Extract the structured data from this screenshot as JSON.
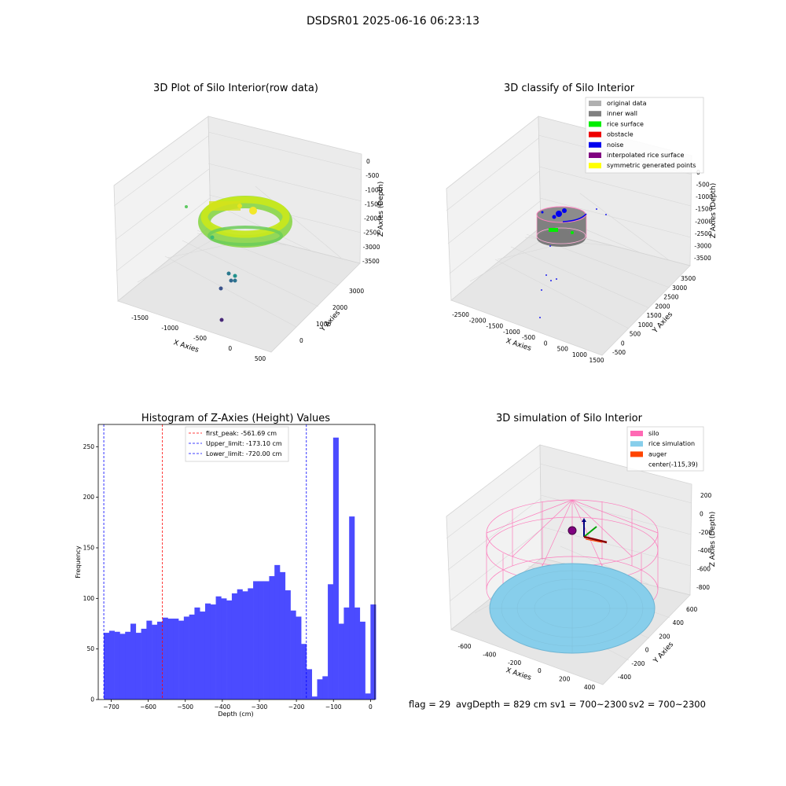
{
  "figure": {
    "suptitle": "DSDSR01 2025-06-16 06:23:13",
    "footer": {
      "flag": "flag = 29",
      "avg_depth": "avgDepth = 829 cm",
      "sv1": "sv1 = 700~2300",
      "sv2": "sv2 = 700~2300"
    }
  },
  "panels": {
    "raw": {
      "title": "3D Plot of Silo Interior(row data)",
      "xlabel": "X Axies",
      "ylabel": "Y Axies",
      "zlabel": "Z Axies (Depth)",
      "xticks": [
        "-1500",
        "-1000",
        "-500",
        "0",
        "500"
      ],
      "yticks": [
        "0",
        "1000",
        "2000",
        "3000"
      ],
      "zticks": [
        "0",
        "-500",
        "-1000",
        "-1500",
        "-2000",
        "-2500",
        "-3000",
        "-3500"
      ]
    },
    "classify": {
      "title": "3D classify of Silo Interior",
      "xlabel": "X Axies",
      "ylabel": "Y Axies",
      "zlabel": "Z Axies (Depth)",
      "xticks": [
        "-2500",
        "-2000",
        "-1500",
        "-1000",
        "-500",
        "0",
        "500",
        "1000",
        "1500"
      ],
      "yticks": [
        "-500",
        "0",
        "500",
        "1000",
        "1500",
        "2000",
        "2500",
        "3000",
        "3500"
      ],
      "zticks": [
        "0",
        "-500",
        "-1000",
        "-1500",
        "-2000",
        "-2500",
        "-3000",
        "-3500"
      ],
      "legend": [
        {
          "label": "original data",
          "color": "#b0b0b0"
        },
        {
          "label": "inner wall",
          "color": "#808080"
        },
        {
          "label": "rice surface",
          "color": "#00ee00"
        },
        {
          "label": "obstacle",
          "color": "#ee0000"
        },
        {
          "label": "noise",
          "color": "#0000ee"
        },
        {
          "label": "interpolated rice surface",
          "color": "#800080"
        },
        {
          "label": "symmetric generated points",
          "color": "#ffff00"
        }
      ]
    },
    "sim": {
      "title": "3D simulation of Silo Interior",
      "xlabel": "X Axies",
      "ylabel": "Y Axies",
      "zlabel": "Z Axies (Depth)",
      "xticks": [
        "-600",
        "-400",
        "-200",
        "0",
        "200",
        "400"
      ],
      "yticks": [
        "-400",
        "-200",
        "0",
        "200",
        "400",
        "600"
      ],
      "zticks": [
        "200",
        "0",
        "-200",
        "-400",
        "-600",
        "-800"
      ],
      "legend": [
        {
          "label": "silo",
          "color": "#ff69b4"
        },
        {
          "label": "rice simulation",
          "color": "#87ceeb"
        },
        {
          "label": "auger",
          "color": "#ff4500"
        },
        {
          "label": "center(-115,39)",
          "color": ""
        }
      ]
    }
  },
  "chart_data": {
    "type": "bar",
    "title": "Histogram of Z-Axies (Height) Values",
    "xlabel": "Depth (cm)",
    "ylabel": "Frequency",
    "xlim": [
      -735,
      12
    ],
    "ylim": [
      0,
      272
    ],
    "xticks": [
      -700,
      -600,
      -500,
      -400,
      -300,
      -200,
      -100,
      0
    ],
    "yticks": [
      0,
      50,
      100,
      150,
      200,
      250
    ],
    "bar_color": "#4b4bff",
    "bin_start": -720,
    "bin_width": 14.4,
    "values": [
      66,
      68,
      67,
      65,
      67,
      75,
      66,
      70,
      78,
      74,
      77,
      81,
      80,
      80,
      78,
      82,
      84,
      91,
      87,
      95,
      94,
      102,
      100,
      98,
      105,
      109,
      107,
      110,
      117,
      117,
      117,
      122,
      133,
      126,
      108,
      88,
      82,
      55,
      30,
      3,
      20,
      23,
      114,
      259,
      75,
      91,
      181,
      91,
      77,
      6,
      94
    ],
    "lines": [
      {
        "label": "first_peak: -561.69 cm",
        "x": -561.69,
        "color": "#ff0000"
      },
      {
        "label": "Upper_limit: -173.10 cm",
        "x": -173.1,
        "color": "#0000ff"
      },
      {
        "label": "Lower_limit: -720.00 cm",
        "x": -720.0,
        "color": "#0000ff"
      }
    ],
    "legend_position": "top-center"
  }
}
